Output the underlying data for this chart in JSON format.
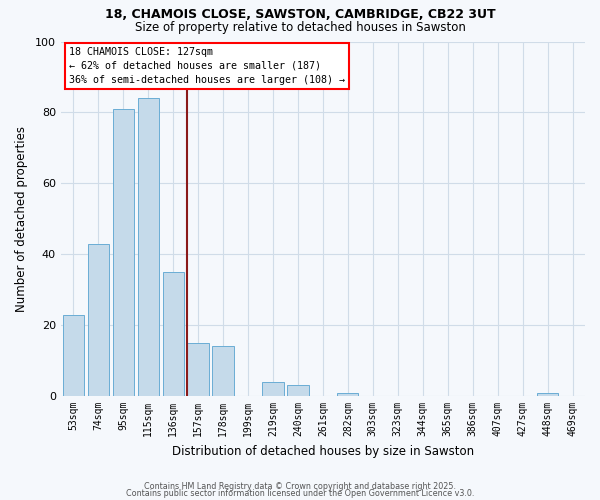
{
  "title": "18, CHAMOIS CLOSE, SAWSTON, CAMBRIDGE, CB22 3UT",
  "subtitle": "Size of property relative to detached houses in Sawston",
  "xlabel": "Distribution of detached houses by size in Sawston",
  "ylabel": "Number of detached properties",
  "bar_color": "#c5daea",
  "bar_edge_color": "#6aadd5",
  "highlight_color": "#8b1a1a",
  "background_color": "#f5f8fc",
  "grid_color": "#d0dce8",
  "categories": [
    "53sqm",
    "74sqm",
    "95sqm",
    "115sqm",
    "136sqm",
    "157sqm",
    "178sqm",
    "199sqm",
    "219sqm",
    "240sqm",
    "261sqm",
    "282sqm",
    "303sqm",
    "323sqm",
    "344sqm",
    "365sqm",
    "386sqm",
    "407sqm",
    "427sqm",
    "448sqm",
    "469sqm"
  ],
  "values": [
    23,
    43,
    81,
    84,
    35,
    15,
    14,
    0,
    4,
    3,
    0,
    1,
    0,
    0,
    0,
    0,
    0,
    0,
    0,
    1,
    0
  ],
  "ylim": [
    0,
    100
  ],
  "yticks": [
    0,
    20,
    40,
    60,
    80,
    100
  ],
  "property_label": "18 CHAMOIS CLOSE: 127sqm",
  "annotation_line1": "← 62% of detached houses are smaller (187)",
  "annotation_line2": "36% of semi-detached houses are larger (108) →",
  "red_line_x": 4.57,
  "footer_line1": "Contains HM Land Registry data © Crown copyright and database right 2025.",
  "footer_line2": "Contains public sector information licensed under the Open Government Licence v3.0."
}
